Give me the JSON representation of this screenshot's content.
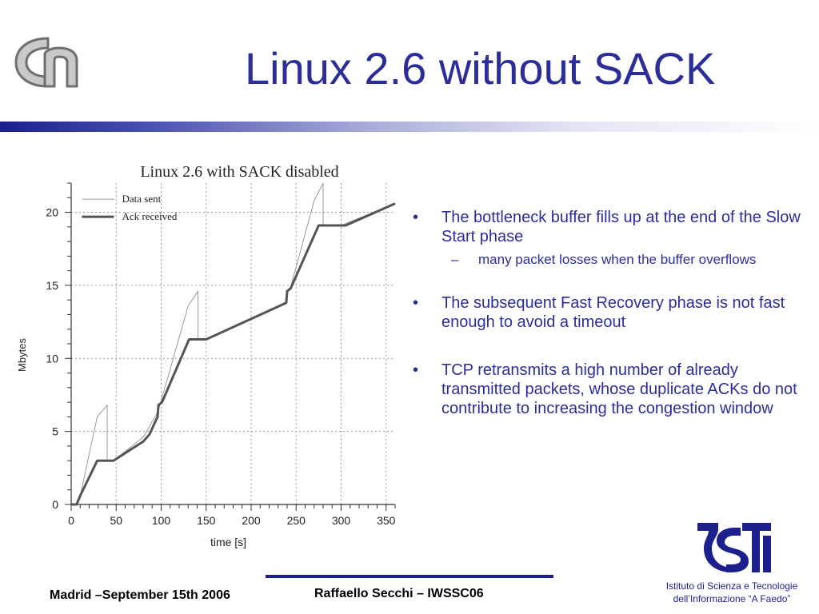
{
  "slide": {
    "title": "Linux 2.6 without SACK",
    "bullets": [
      {
        "text": "The bottleneck buffer fills up at the end of  the Slow Start phase",
        "subitems": [
          "many packet losses when the buffer overflows"
        ]
      },
      {
        "text": "The  subsequent Fast Recovery phase is not fast enough to avoid a timeout",
        "subitems": []
      },
      {
        "text": "TCP retransmits a high number of already transmitted packets, whose duplicate ACKs do not  contribute to increasing the congestion window",
        "subitems": []
      }
    ],
    "bullet_marker": "•",
    "sub_marker": "–"
  },
  "footer": {
    "left": "Madrid –September 15th 2006",
    "center": "Raffaello Secchi – IWSSC06",
    "institute_line1": "Istituto di Scienza e Tecnologie",
    "institute_line2": "dell’Informazione “A Faedo”"
  },
  "colors": {
    "title": "#2b2e9a",
    "bar": "#1c1f8c",
    "data_sent": "#999999",
    "ack_received": "#555555"
  },
  "icons": {
    "top_left_logo": "cnr-logo",
    "bottom_right_logo": "isti-logo"
  },
  "chart_data": {
    "type": "line",
    "title": "Linux 2.6 with SACK disabled",
    "xlabel": "time [s]",
    "ylabel": "Mbytes",
    "xlim": [
      0,
      360
    ],
    "ylim": [
      0,
      22
    ],
    "xticks": [
      0,
      50,
      100,
      150,
      200,
      250,
      300,
      350
    ],
    "yticks": [
      0,
      5,
      10,
      15,
      20
    ],
    "grid": true,
    "legend_position": "top-left",
    "series": [
      {
        "name": "Data sent",
        "style": "thin",
        "points": [
          [
            0,
            0
          ],
          [
            6,
            0
          ],
          [
            10,
            0.6
          ],
          [
            29,
            6.0
          ],
          [
            40,
            6.8
          ],
          [
            40,
            3.0
          ],
          [
            47,
            3.0
          ],
          [
            80,
            4.6
          ],
          [
            96,
            6.3
          ],
          [
            98,
            6.7
          ],
          [
            118,
            11.0
          ],
          [
            130,
            13.6
          ],
          [
            141,
            14.6
          ],
          [
            141,
            11.3
          ],
          [
            150,
            11.3
          ],
          [
            239,
            13.8
          ],
          [
            240,
            14.6
          ],
          [
            244,
            14.9
          ],
          [
            270,
            20.8
          ],
          [
            280,
            22.0
          ],
          [
            280,
            19.1
          ],
          [
            300,
            19.1
          ],
          [
            360,
            20.6
          ]
        ]
      },
      {
        "name": "Ack received",
        "style": "thick",
        "points": [
          [
            0,
            0
          ],
          [
            6,
            0
          ],
          [
            10,
            0.6
          ],
          [
            29,
            3.0
          ],
          [
            47,
            3.0
          ],
          [
            67,
            3.8
          ],
          [
            80,
            4.3
          ],
          [
            87,
            4.8
          ],
          [
            96,
            6.0
          ],
          [
            97,
            6.8
          ],
          [
            101,
            7.0
          ],
          [
            131,
            11.3
          ],
          [
            150,
            11.3
          ],
          [
            239,
            13.8
          ],
          [
            240,
            14.6
          ],
          [
            244,
            14.8
          ],
          [
            275,
            19.1
          ],
          [
            305,
            19.1
          ],
          [
            360,
            20.6
          ]
        ]
      }
    ]
  }
}
